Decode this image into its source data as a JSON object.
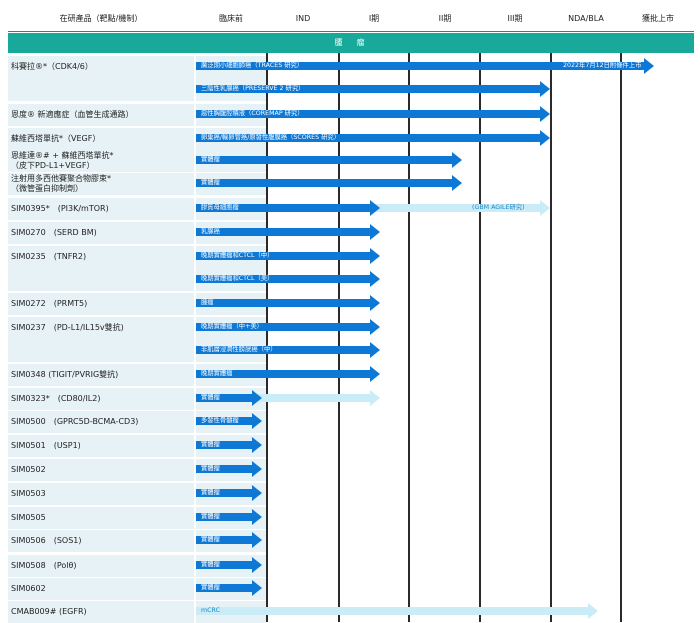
{
  "header": {
    "columns": [
      "在研產品（靶點/機制）",
      "臨床前",
      "IND",
      "I期",
      "II期",
      "III期",
      "NDA/BLA",
      "獲批上市"
    ]
  },
  "section_title": "腫　瘤",
  "colors": {
    "section": "#19a99b",
    "arrow_dark": "#0d78d6",
    "arrow_light": "#26b6ee",
    "arrow_pale": "#c9ecf6",
    "row_band": "#e7f2f6"
  },
  "products": [
    {
      "lines": [
        "科賽拉®*（CDK4/6）"
      ]
    },
    {
      "lines": [
        "恩度® 新適應症（血管生成通路）"
      ]
    },
    {
      "lines": [
        "蘇維西塔單抗*（VEGF）"
      ]
    },
    {
      "lines": [
        "恩維達®# + 蘇維西塔單抗*",
        "（皮下PD-L1+VEGF）"
      ]
    },
    {
      "lines": [
        "注射用多西他賽聚合物膠束*",
        "（微管蛋白抑制劑）"
      ]
    },
    {
      "lines": [
        "SIM0395*　(PI3K/mTOR)"
      ]
    },
    {
      "lines": [
        "SIM0270　(SERD BM)"
      ]
    },
    {
      "lines": [
        "SIM0235　(TNFR2)"
      ]
    },
    {
      "lines": [
        "SIM0272　(PRMT5)"
      ]
    },
    {
      "lines": [
        "SIM0237　(PD-L1/IL15v雙抗)"
      ]
    },
    {
      "lines": [
        "SIM0348 (TIGIT/PVRIG雙抗)"
      ]
    },
    {
      "lines": [
        "SIM0323*　(CD80/IL2)"
      ]
    },
    {
      "lines": [
        "SIM0500　(GPRC5D-BCMA-CD3)"
      ]
    },
    {
      "lines": [
        "SIM0501　(USP1)"
      ]
    },
    {
      "lines": [
        "SIM0502"
      ]
    },
    {
      "lines": [
        "SIM0503"
      ]
    },
    {
      "lines": [
        "SIM0505"
      ]
    },
    {
      "lines": [
        "SIM0506　(SOS1)"
      ]
    },
    {
      "lines": [
        "SIM0508　(Polθ)"
      ]
    },
    {
      "lines": [
        "SIM0602"
      ]
    },
    {
      "lines": [
        "CMAB009# (EGFR)"
      ]
    }
  ],
  "programs": [
    {
      "label": "廣泛期小細胞肺癌（TRACES 研究）",
      "stage": "獲批上市",
      "note": "2022年7月12日附條件上市"
    },
    {
      "label": "三陰性乳腺癌（PRESERVE 2 研究）",
      "stage": "III期"
    },
    {
      "label": "惡性胸腹腔積液（COREMAP 研究）",
      "stage": "III期"
    },
    {
      "label": "卵巢癌/輸卵管癌/原發性腹膜癌（SCORES 研究）",
      "stage": "III期"
    },
    {
      "label": "實體瘤",
      "stage": "II期"
    },
    {
      "label": "實體瘤",
      "stage": "II期"
    },
    {
      "label": "膠質母細胞瘤",
      "stage": "I期",
      "note": "(GBM AGILE研究)",
      "extended_stage": "III期"
    },
    {
      "label": "乳腺癌",
      "stage": "I期"
    },
    {
      "label": "晚期實體瘤和CTCL（中）",
      "stage": "I期"
    },
    {
      "label": "晚期實體瘤和CTCL（美）",
      "stage": "I期"
    },
    {
      "label": "腫瘤",
      "stage": "I期"
    },
    {
      "label": "晚期實體瘤（中+美）",
      "stage": "I期"
    },
    {
      "label": "非肌層浸潤性膀胱癌（中）",
      "stage": "I期"
    },
    {
      "label": "晚期實體瘤",
      "stage": "I期"
    },
    {
      "label": "實體瘤",
      "stage": "IND",
      "extended_stage": "I期"
    },
    {
      "label": "多發性骨髓瘤",
      "stage": "IND"
    },
    {
      "label": "實體瘤",
      "stage": "IND"
    },
    {
      "label": "實體瘤",
      "stage": "IND"
    },
    {
      "label": "實體瘤",
      "stage": "IND"
    },
    {
      "label": "實體瘤",
      "stage": "IND"
    },
    {
      "label": "實體瘤",
      "stage": "IND"
    },
    {
      "label": "實體瘤",
      "stage": "IND"
    },
    {
      "label": "實體瘤",
      "stage": "IND"
    },
    {
      "label": "mCRC",
      "stage": "NDA/BLA"
    }
  ]
}
